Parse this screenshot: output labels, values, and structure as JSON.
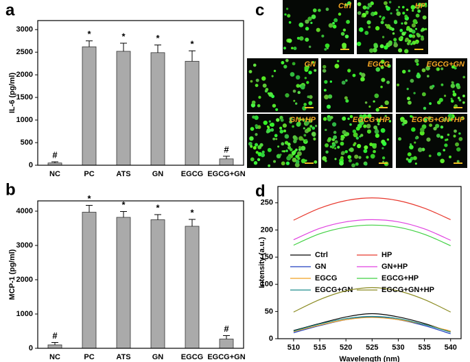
{
  "chart_data": [
    {
      "type": "bar",
      "panel": "a",
      "ylabel": "IL-6 (pg/ml)",
      "color": "#aaaaaa",
      "categories": [
        "NC",
        "PC",
        "ATS",
        "GN",
        "EGCG",
        "EGCG+GN"
      ],
      "values": [
        50,
        2620,
        2520,
        2490,
        2300,
        140
      ],
      "errors": [
        25,
        130,
        180,
        170,
        230,
        60
      ],
      "annotations": [
        "#",
        "*",
        "*",
        "*",
        "*",
        "#"
      ],
      "ylim": [
        0,
        3200
      ],
      "yticks": [
        0,
        500,
        1000,
        1500,
        2000,
        2500,
        3000
      ]
    },
    {
      "type": "bar",
      "panel": "b",
      "ylabel": "MCP-1 (pg/ml)",
      "color": "#aaaaaa",
      "categories": [
        "NC",
        "PC",
        "ATS",
        "GN",
        "EGCG",
        "EGCG+GN"
      ],
      "values": [
        100,
        3970,
        3820,
        3750,
        3560,
        270
      ],
      "errors": [
        70,
        200,
        170,
        150,
        200,
        100
      ],
      "annotations": [
        "#",
        "*",
        "*",
        "*",
        "*",
        "#"
      ],
      "ylim": [
        0,
        4300
      ],
      "yticks": [
        0,
        1000,
        2000,
        3000,
        4000
      ]
    },
    {
      "type": "line",
      "panel": "d",
      "xlabel": "Wavelength (nm)",
      "ylabel": "Intensity (a.u.)",
      "x": [
        510,
        515,
        520,
        525,
        530,
        535,
        540
      ],
      "series": [
        {
          "name": "Ctrl",
          "color": "#000000",
          "values": [
            15,
            28,
            40,
            46,
            40,
            28,
            12
          ]
        },
        {
          "name": "HP",
          "color": "#e8372c",
          "values": [
            218,
            240,
            254,
            259,
            254,
            240,
            219
          ]
        },
        {
          "name": "GN",
          "color": "#1f3fbf",
          "values": [
            11,
            24,
            35,
            40,
            35,
            24,
            9
          ]
        },
        {
          "name": "GN+HP",
          "color": "#e040e0",
          "values": [
            182,
            203,
            215,
            219,
            215,
            202,
            181
          ]
        },
        {
          "name": "EGCG",
          "color": "#f0a020",
          "values": [
            13,
            25,
            35,
            39,
            35,
            26,
            14
          ]
        },
        {
          "name": "EGCG+HP",
          "color": "#3ed040",
          "values": [
            172,
            193,
            205,
            209,
            205,
            192,
            171
          ]
        },
        {
          "name": "EGCG+GN",
          "color": "#1a8a8a",
          "values": [
            14,
            27,
            37,
            41,
            37,
            26,
            12
          ]
        },
        {
          "name": "EGCG+GN+HP",
          "color": "#8a8a20",
          "values": [
            49,
            72,
            88,
            94,
            88,
            72,
            49
          ]
        }
      ],
      "xlim": [
        507,
        542
      ],
      "xticks": [
        510,
        515,
        520,
        525,
        530,
        535,
        540
      ],
      "ylim": [
        0,
        280
      ],
      "yticks": [
        0,
        50,
        100,
        150,
        200,
        250
      ]
    }
  ],
  "micrographs": {
    "panel": "c",
    "labels": [
      "Ctrl",
      "HP",
      "GN",
      "EGCG",
      "EGCG+GN",
      "GN+HP",
      "EGCG+HP",
      "EGCG+GN+HP"
    ]
  }
}
